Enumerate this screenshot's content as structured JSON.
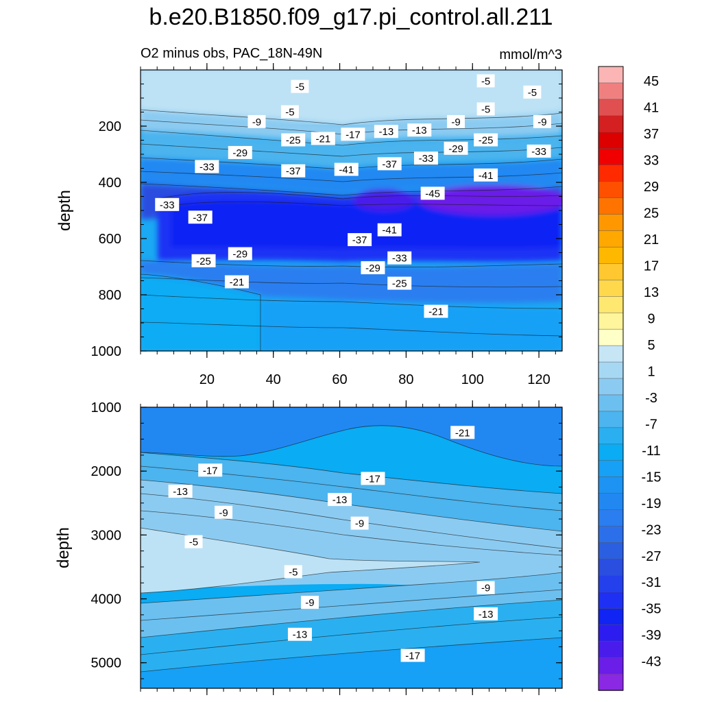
{
  "chart_data": {
    "type": "heatmap",
    "title": "b.e20.B1850.f09_g17.pi_control.all.211",
    "subtitle_left": "O2 minus obs, PAC_18N-49N",
    "units": "mmol/m^3",
    "ylabel": "depth",
    "x_range": [
      0,
      127
    ],
    "x_ticks": [
      "20",
      "40",
      "60",
      "80",
      "100",
      "120"
    ],
    "panels": [
      {
        "name": "upper",
        "ylim": [
          0,
          1000
        ],
        "y_ticks": [
          "200",
          "400",
          "600",
          "800",
          "1000"
        ],
        "contour_labels": [
          {
            "text": "-5",
            "x": 48,
            "y": 60
          },
          {
            "text": "-5",
            "x": 104,
            "y": 40
          },
          {
            "text": "-5",
            "x": 118,
            "y": 80
          },
          {
            "text": "-5",
            "x": 45,
            "y": 150
          },
          {
            "text": "-5",
            "x": 104,
            "y": 140
          },
          {
            "text": "-9",
            "x": 35,
            "y": 185
          },
          {
            "text": "-9",
            "x": 95,
            "y": 185
          },
          {
            "text": "-9",
            "x": 121,
            "y": 185
          },
          {
            "text": "-25",
            "x": 46,
            "y": 250
          },
          {
            "text": "-21",
            "x": 55,
            "y": 245
          },
          {
            "text": "-17",
            "x": 64,
            "y": 230
          },
          {
            "text": "-13",
            "x": 74,
            "y": 220
          },
          {
            "text": "-13",
            "x": 84,
            "y": 215
          },
          {
            "text": "-25",
            "x": 104,
            "y": 250
          },
          {
            "text": "-29",
            "x": 30,
            "y": 295
          },
          {
            "text": "-33",
            "x": 20,
            "y": 345
          },
          {
            "text": "-37",
            "x": 46,
            "y": 360
          },
          {
            "text": "-41",
            "x": 62,
            "y": 355
          },
          {
            "text": "-37",
            "x": 75,
            "y": 335
          },
          {
            "text": "-33",
            "x": 86,
            "y": 315
          },
          {
            "text": "-29",
            "x": 95,
            "y": 280
          },
          {
            "text": "-33",
            "x": 120,
            "y": 290
          },
          {
            "text": "-41",
            "x": 104,
            "y": 375
          },
          {
            "text": "-45",
            "x": 88,
            "y": 440
          },
          {
            "text": "-33",
            "x": 8,
            "y": 480
          },
          {
            "text": "-37",
            "x": 18,
            "y": 525
          },
          {
            "text": "-41",
            "x": 75,
            "y": 570
          },
          {
            "text": "-37",
            "x": 66,
            "y": 605
          },
          {
            "text": "-29",
            "x": 30,
            "y": 655
          },
          {
            "text": "-25",
            "x": 19,
            "y": 680
          },
          {
            "text": "-33",
            "x": 78,
            "y": 670
          },
          {
            "text": "-29",
            "x": 70,
            "y": 705
          },
          {
            "text": "-21",
            "x": 29,
            "y": 755
          },
          {
            "text": "-25",
            "x": 78,
            "y": 760
          },
          {
            "text": "-21",
            "x": 89,
            "y": 860
          }
        ]
      },
      {
        "name": "lower",
        "ylim": [
          1000,
          5400
        ],
        "y_ticks": [
          "1000",
          "2000",
          "3000",
          "4000",
          "5000"
        ],
        "contour_labels": [
          {
            "text": "-21",
            "x": 97,
            "y": 1400
          },
          {
            "text": "-17",
            "x": 21,
            "y": 1990
          },
          {
            "text": "-17",
            "x": 70,
            "y": 2120
          },
          {
            "text": "-13",
            "x": 12,
            "y": 2320
          },
          {
            "text": "-13",
            "x": 60,
            "y": 2450
          },
          {
            "text": "-9",
            "x": 25,
            "y": 2650
          },
          {
            "text": "-9",
            "x": 66,
            "y": 2820
          },
          {
            "text": "-5",
            "x": 16,
            "y": 3110
          },
          {
            "text": "-5",
            "x": 46,
            "y": 3580
          },
          {
            "text": "-9",
            "x": 104,
            "y": 3830
          },
          {
            "text": "-9",
            "x": 51,
            "y": 4060
          },
          {
            "text": "-13",
            "x": 104,
            "y": 4240
          },
          {
            "text": "-13",
            "x": 48,
            "y": 4560
          },
          {
            "text": "-17",
            "x": 82,
            "y": 4890
          }
        ]
      }
    ],
    "colorbar": {
      "labels": [
        "45",
        "41",
        "37",
        "33",
        "29",
        "25",
        "21",
        "17",
        "13",
        "9",
        "5",
        "1",
        "-3",
        "-7",
        "-11",
        "-15",
        "-19",
        "-23",
        "-27",
        "-31",
        "-35",
        "-39",
        "-43"
      ],
      "colors": [
        "#fbb5b5",
        "#f08080",
        "#e05050",
        "#d42020",
        "#dc0000",
        "#f00000",
        "#ff2a00",
        "#ff5000",
        "#ff7400",
        "#ff9800",
        "#ffa800",
        "#ffb800",
        "#ffc830",
        "#ffd84c",
        "#ffe870",
        "#fff59c",
        "#ffffc8",
        "#c6e6f6",
        "#a6d8f4",
        "#8ccbf1",
        "#6cc0f0",
        "#4cb4ee",
        "#2ab0f0",
        "#0aacf4",
        "#16a0f6",
        "#1d93f4",
        "#2188f2",
        "#2a7ef0",
        "#2b70ea",
        "#2b5fe2",
        "#2a4ee0",
        "#2440ec",
        "#1e30f4",
        "#1024f4",
        "#2d1cf0",
        "#4a1cec",
        "#6a1ee8",
        "#8a28e4"
      ]
    }
  }
}
